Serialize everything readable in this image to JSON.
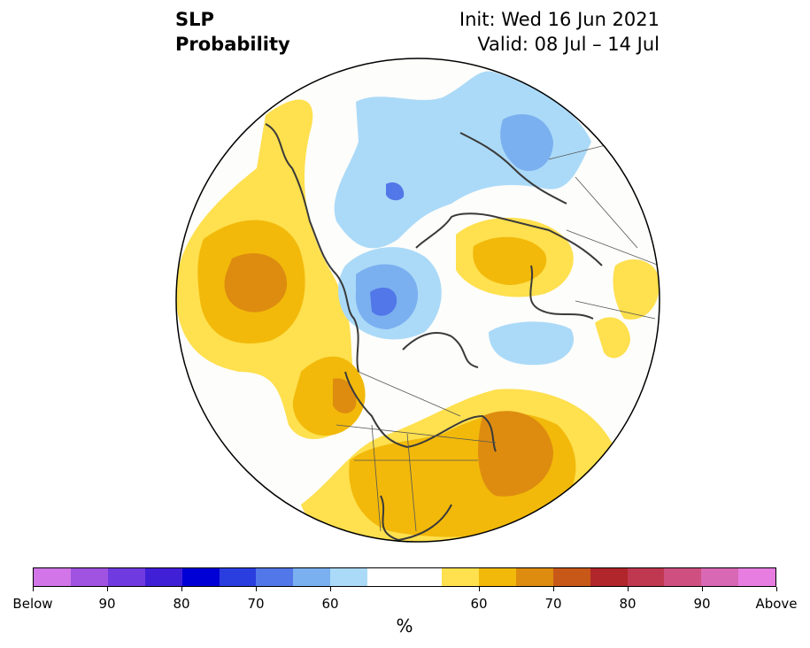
{
  "header": {
    "variable": "SLP",
    "product": "Probability",
    "init": "Init: Wed 16 Jun 2021",
    "valid": "Valid: 08 Jul – 14 Jul"
  },
  "colorbar": {
    "colors": [
      "#d175e8",
      "#a052e0",
      "#6f3be0",
      "#4020d6",
      "#0000d6",
      "#2a3ee0",
      "#5277e8",
      "#7ab0f0",
      "#abdaf8",
      "#ffffff",
      "#ffffff",
      "#ffe04e",
      "#f2b90a",
      "#de8c10",
      "#c85818",
      "#b0262a",
      "#c0384f",
      "#cf5080",
      "#d968b4",
      "#e77de0"
    ],
    "labels": [
      "Below",
      "90",
      "80",
      "70",
      "60",
      "60",
      "70",
      "80",
      "90",
      "Above"
    ],
    "unit": "%"
  },
  "legend_colors": {
    "below_60": "#abdaf8",
    "below_70": "#7ab0f0",
    "below_80": "#5277e8",
    "above_60": "#ffe04e",
    "above_70": "#f2b90a",
    "above_80": "#de8c10"
  }
}
